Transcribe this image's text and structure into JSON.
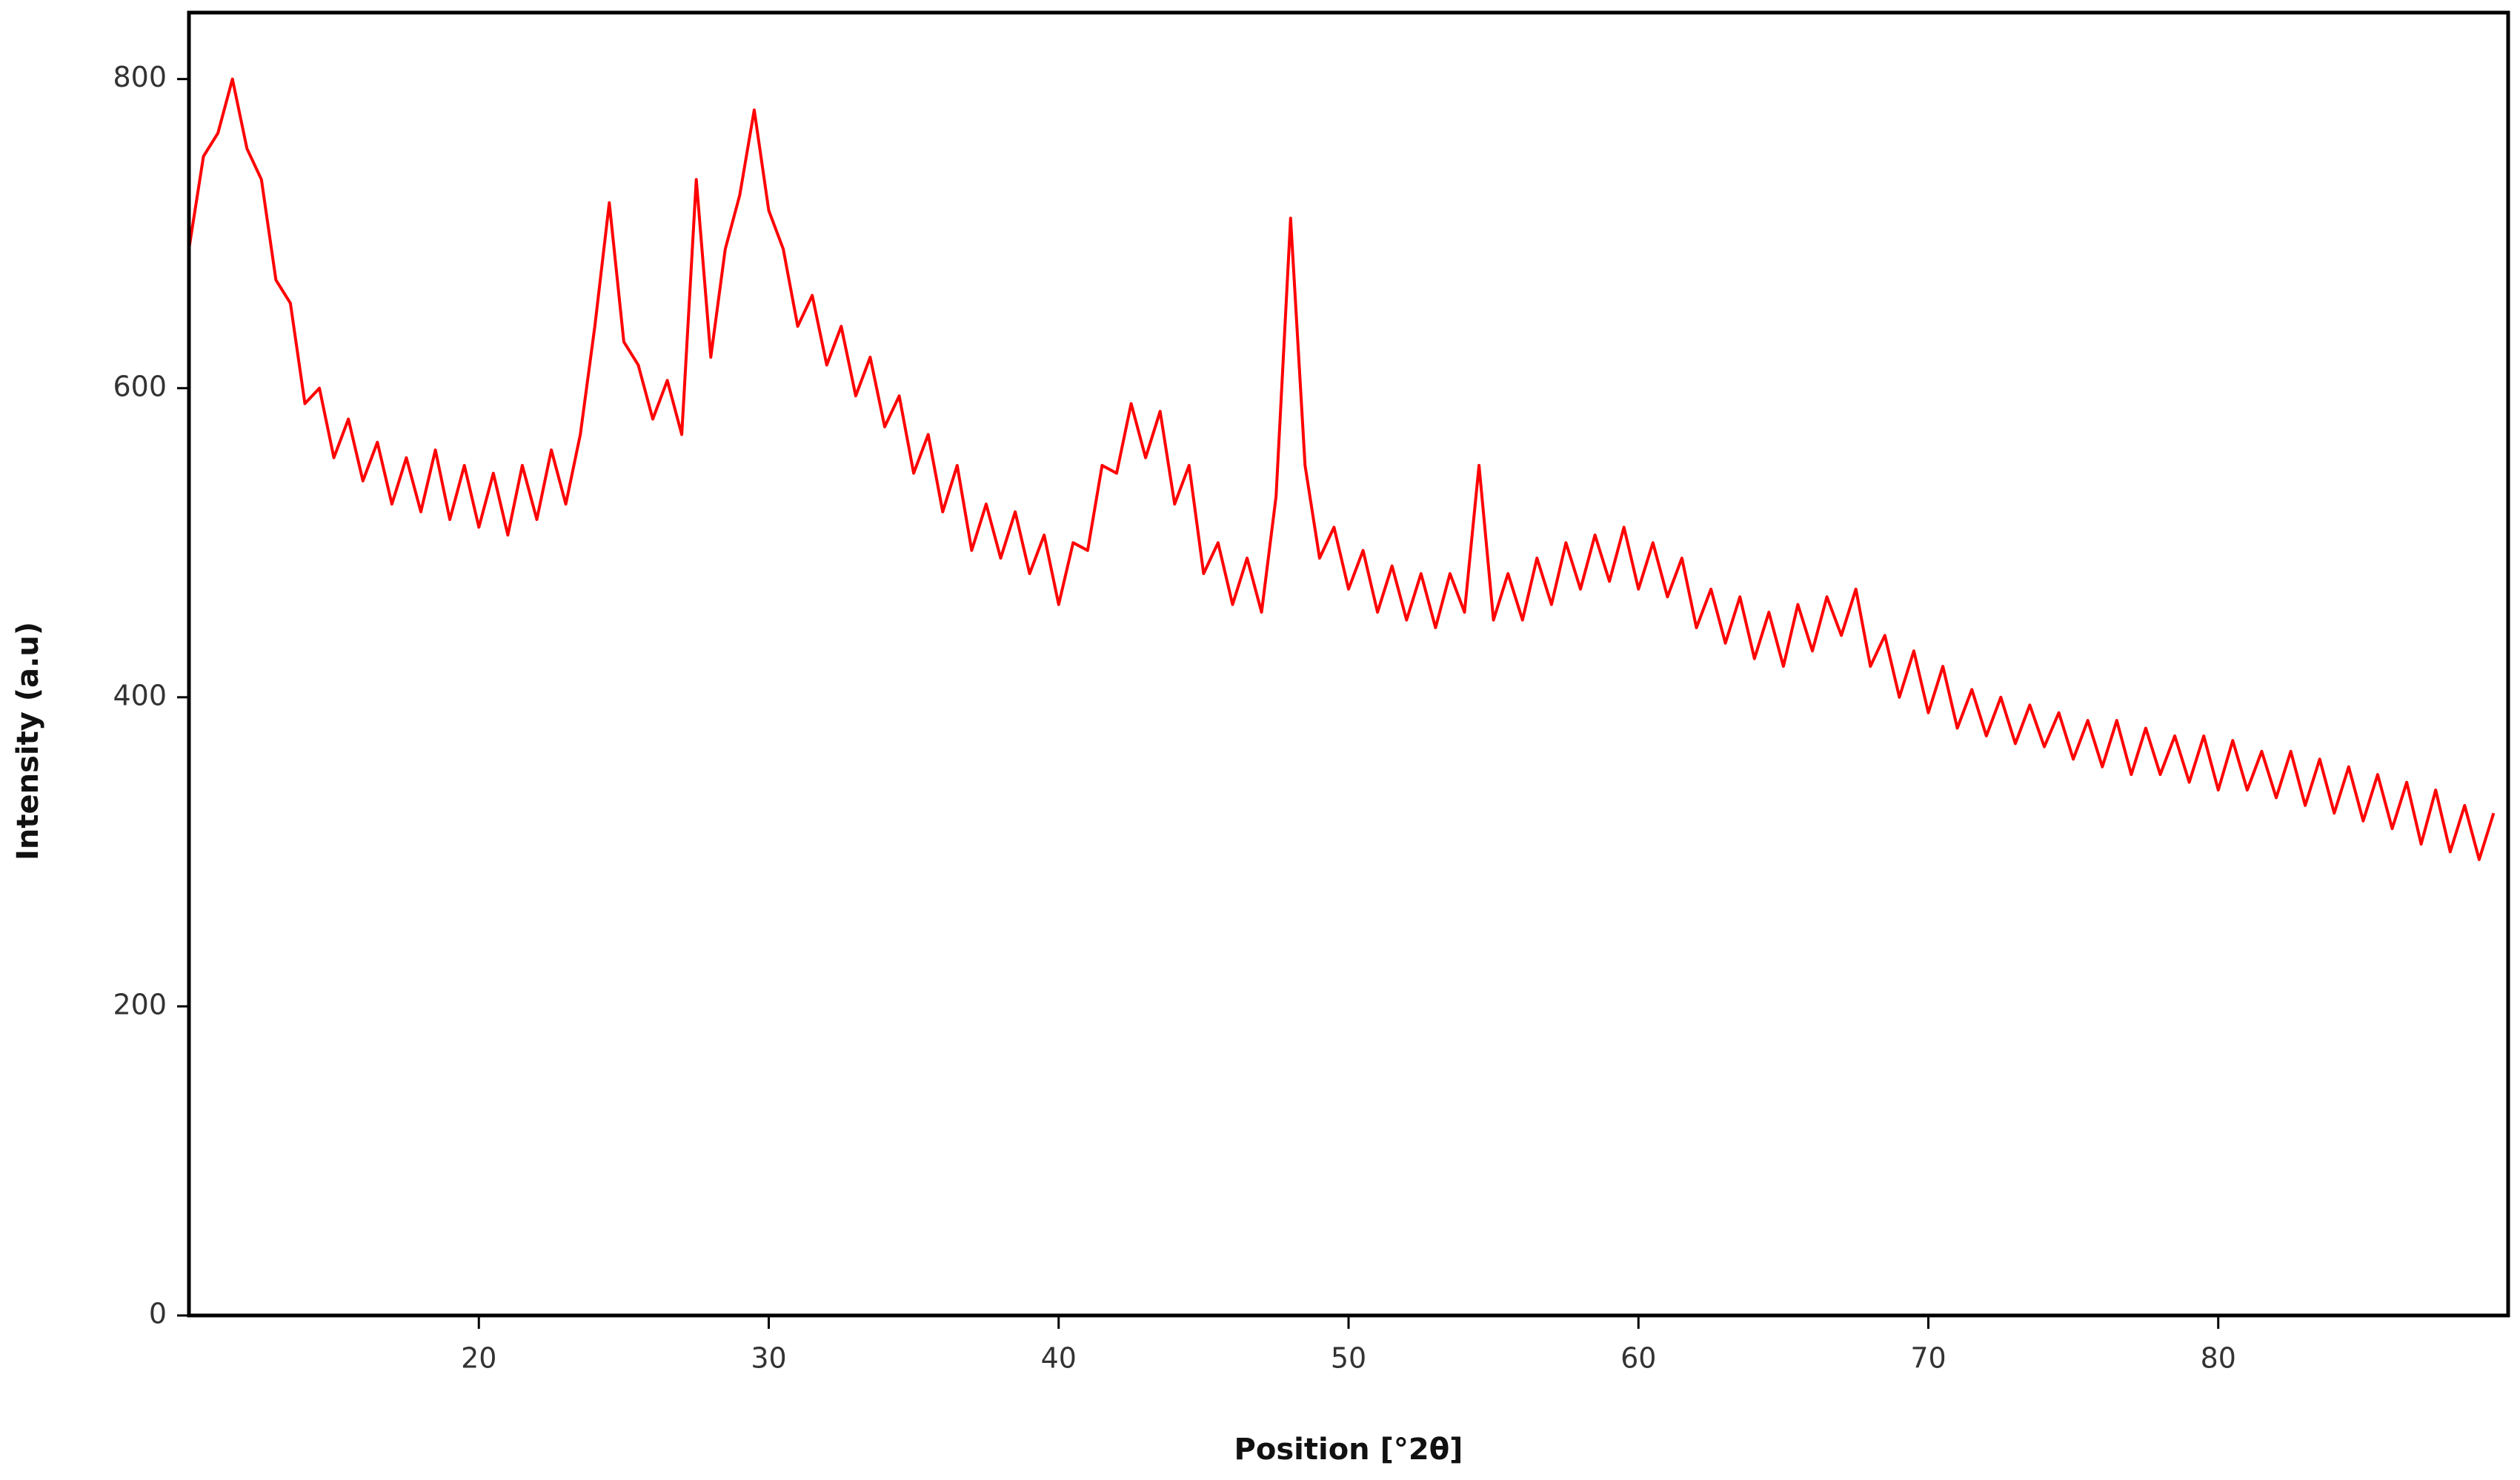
{
  "chart_data": {
    "type": "line",
    "xlabel": "Position [°2θ]",
    "ylabel": "Intensity (a.u)",
    "x": [
      10,
      10.5,
      11,
      11.5,
      12,
      12.5,
      13,
      13.5,
      14,
      14.5,
      15,
      15.5,
      16,
      16.5,
      17,
      17.5,
      18,
      18.5,
      19,
      19.5,
      20,
      20.5,
      21,
      21.5,
      22,
      22.5,
      23,
      23.5,
      24,
      24.5,
      25,
      25.5,
      26,
      26.5,
      27,
      27.5,
      28,
      28.5,
      29,
      29.5,
      30,
      30.5,
      31,
      31.5,
      32,
      32.5,
      33,
      33.5,
      34,
      34.5,
      35,
      35.5,
      36,
      36.5,
      37,
      37.5,
      38,
      38.5,
      39,
      39.5,
      40,
      40.5,
      41,
      41.5,
      42,
      42.5,
      43,
      43.5,
      44,
      44.5,
      45,
      45.5,
      46,
      46.5,
      47,
      47.5,
      48,
      48.5,
      49,
      49.5,
      50,
      50.5,
      51,
      51.5,
      52,
      52.5,
      53,
      53.5,
      54,
      54.5,
      55,
      55.5,
      56,
      56.5,
      57,
      57.5,
      58,
      58.5,
      59,
      59.5,
      60,
      60.5,
      61,
      61.5,
      62,
      62.5,
      63,
      63.5,
      64,
      64.5,
      65,
      65.5,
      66,
      66.5,
      67,
      67.5,
      68,
      68.5,
      69,
      69.5,
      70,
      70.5,
      71,
      71.5,
      72,
      72.5,
      73,
      73.5,
      74,
      74.5,
      75,
      75.5,
      76,
      76.5,
      77,
      77.5,
      78,
      78.5,
      79,
      79.5,
      80,
      80.5,
      81,
      81.5,
      82,
      82.5,
      83,
      83.5,
      84,
      84.5,
      85,
      85.5,
      86,
      86.5,
      87,
      87.5,
      88,
      88.5,
      89,
      89.5
    ],
    "series": [
      {
        "name": "Intensity",
        "color": "#ff0000",
        "values": [
          690,
          750,
          765,
          800,
          755,
          735,
          670,
          655,
          590,
          600,
          555,
          580,
          540,
          565,
          525,
          555,
          520,
          560,
          515,
          550,
          510,
          545,
          505,
          550,
          515,
          560,
          525,
          570,
          640,
          720,
          630,
          615,
          580,
          605,
          570,
          735,
          620,
          690,
          725,
          780,
          715,
          690,
          640,
          660,
          615,
          640,
          595,
          620,
          575,
          595,
          545,
          570,
          520,
          550,
          495,
          525,
          490,
          520,
          480,
          505,
          460,
          500,
          495,
          550,
          545,
          590,
          555,
          585,
          525,
          550,
          480,
          500,
          460,
          490,
          455,
          530,
          710,
          550,
          490,
          510,
          470,
          495,
          455,
          485,
          450,
          480,
          445,
          480,
          455,
          550,
          450,
          480,
          450,
          490,
          460,
          500,
          470,
          505,
          475,
          510,
          470,
          500,
          465,
          490,
          445,
          470,
          435,
          465,
          425,
          455,
          420,
          460,
          430,
          465,
          440,
          470,
          420,
          440,
          400,
          430,
          390,
          420,
          380,
          405,
          375,
          400,
          370,
          395,
          368,
          390,
          360,
          385,
          355,
          385,
          350,
          380,
          350,
          375,
          345,
          375,
          340,
          372,
          340,
          365,
          335,
          365,
          330,
          360,
          325,
          355,
          320,
          350,
          315,
          345,
          305,
          340,
          300,
          330,
          295,
          325
        ]
      }
    ],
    "xlim": [
      10,
      90
    ],
    "ylim": [
      0,
      843
    ],
    "xticks": [
      20,
      30,
      40,
      50,
      60,
      70,
      80
    ],
    "yticks": [
      0,
      200,
      400,
      600,
      800
    ],
    "grid": false
  }
}
